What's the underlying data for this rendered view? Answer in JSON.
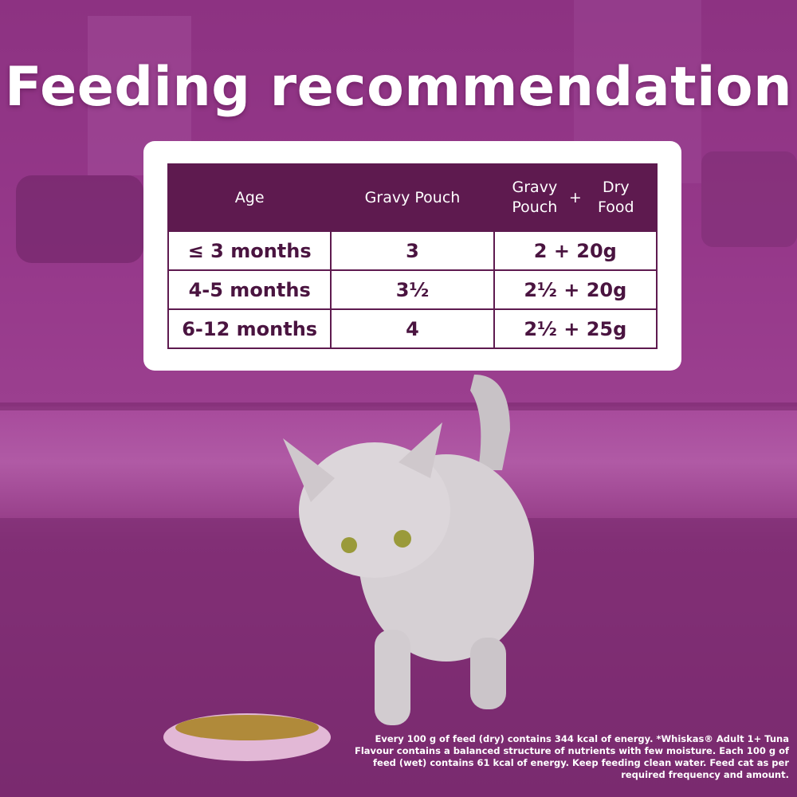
{
  "title": "Feeding recommendation",
  "table": {
    "header": [
      "Age",
      "Gravy Pouch",
      [
        "Gravy Pouch",
        "+",
        "Dry Food"
      ]
    ],
    "rows": [
      [
        "≤ 3 months",
        "3",
        "2 + 20g"
      ],
      [
        "4-5 months",
        "3½",
        "2½ + 20g"
      ],
      [
        "6-12 months",
        "4",
        "2½ + 25g"
      ]
    ]
  },
  "footnote": "Every 100 g of feed (dry) contains 344 kcal of energy. *Whiskas® Adult 1+ Tuna Flavour contains a balanced structure of nutrients with few moisture. Each 100 g of feed (wet) contains 61 kcal of energy. Keep feeding clean water. Feed cat as per required frequency and amount."
}
